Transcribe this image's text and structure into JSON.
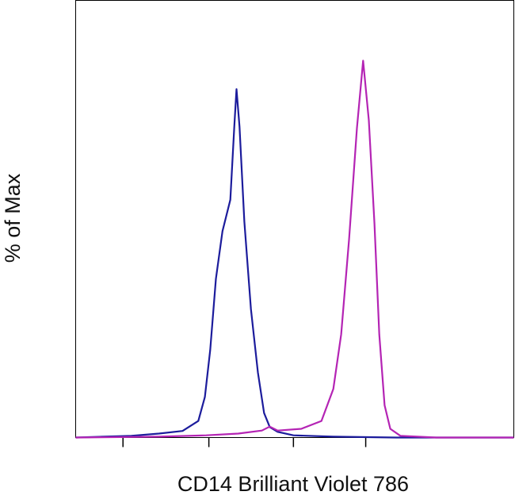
{
  "chart_data": {
    "type": "line",
    "xlabel": "CD14 Brilliant Violet 786",
    "ylabel": "% of Max",
    "xlim": [
      0,
      100
    ],
    "ylim": [
      0,
      100
    ],
    "xticks": [
      10.8,
      30.4,
      49.7,
      66.2
    ],
    "series": [
      {
        "color": "#1c1c9c",
        "x": [
          0,
          12.7,
          19.0,
          24.4,
          28.0,
          29.5,
          30.7,
          32.0,
          33.5,
          35.3,
          36.2,
          36.7,
          37.4,
          38.5,
          40.0,
          41.6,
          43.0,
          44.3,
          46.1,
          49.7,
          58.8,
          73.2,
          100
        ],
        "values": [
          0,
          0.4,
          0.9,
          1.5,
          3.8,
          9.3,
          20.0,
          36.3,
          47.2,
          54.4,
          71.1,
          79.7,
          71.1,
          49.4,
          29.4,
          14.9,
          5.6,
          2.4,
          1.3,
          0.5,
          0.2,
          0,
          0
        ]
      },
      {
        "color": "#b424b4",
        "x": [
          0,
          19.0,
          29.8,
          37.1,
          42.5,
          44.3,
          46.1,
          51.5,
          56.1,
          58.8,
          60.6,
          62.4,
          64.2,
          65.6,
          66.9,
          68.2,
          69.3,
          70.5,
          71.8,
          74.1,
          82.3,
          100
        ],
        "values": [
          0,
          0.2,
          0.5,
          0.9,
          1.6,
          2.5,
          1.6,
          2.0,
          3.8,
          11.1,
          23.6,
          45.4,
          70.8,
          86.2,
          72.6,
          49.0,
          23.6,
          7.4,
          2.0,
          0.4,
          0,
          0
        ]
      }
    ]
  }
}
